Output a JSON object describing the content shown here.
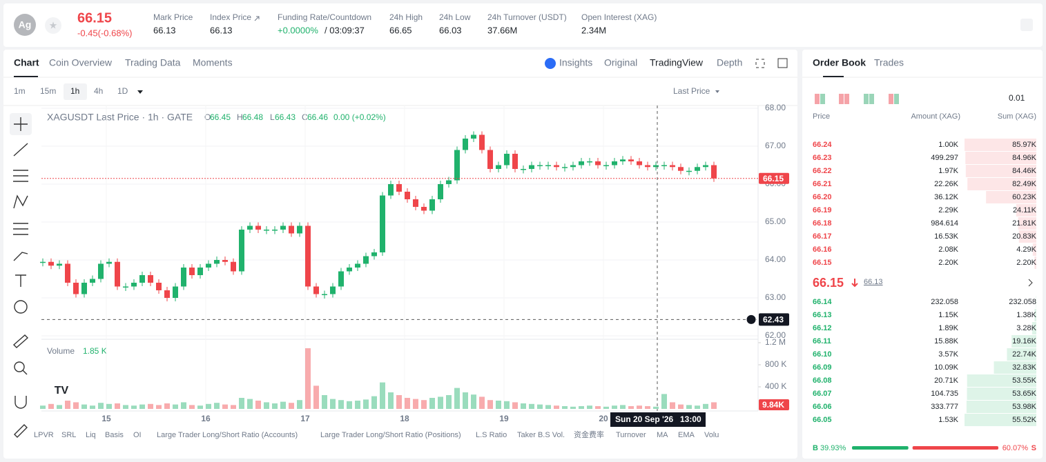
{
  "header": {
    "symbol_icon": "Ag",
    "last_price": "66.15",
    "change": "-0.45(-0.68%)",
    "stats": [
      {
        "label": "Mark Price",
        "value": "66.13"
      },
      {
        "label": "Index Price",
        "value": "66.13"
      },
      {
        "label": "Funding Rate/Countdown",
        "value": "+0.0000%",
        "countdown": "/ 03:09:37"
      },
      {
        "label": "24h High",
        "value": "66.65"
      },
      {
        "label": "24h Low",
        "value": "66.03"
      },
      {
        "label": "24h Turnover (USDT)",
        "value": "37.66M"
      },
      {
        "label": "Open Interest (XAG)",
        "value": "2.34M"
      }
    ]
  },
  "tabs": {
    "left": [
      "Chart",
      "Coin Overview",
      "Trading Data",
      "Moments"
    ],
    "right": [
      "Insights",
      "Original",
      "TradingView",
      "Depth"
    ]
  },
  "intervals": [
    "1m",
    "15m",
    "1h",
    "4h",
    "1D"
  ],
  "price_source": "Last Price",
  "legend": {
    "title": "XAGUSDT Last Price · 1h · GATE",
    "ohlc": [
      {
        "key": "O",
        "value": "66.45"
      },
      {
        "key": "H",
        "value": "66.48"
      },
      {
        "key": "L",
        "value": "66.43"
      },
      {
        "key": "C",
        "value": "66.46"
      }
    ],
    "change": "0.00 (+0.02%)",
    "volume_label": "Volume",
    "volume_value": "1.85 K"
  },
  "chart_data": {
    "type": "candlestick",
    "closes": [
      63.95,
      63.85,
      63.9,
      63.4,
      63.1,
      63.4,
      63.5,
      63.9,
      63.95,
      63.3,
      63.3,
      63.4,
      63.6,
      63.4,
      63.2,
      63.0,
      63.3,
      63.8,
      63.6,
      63.8,
      63.9,
      64.0,
      63.95,
      63.7,
      64.8,
      64.9,
      64.8,
      64.8,
      64.8,
      64.9,
      64.7,
      64.9,
      63.3,
      63.1,
      63.1,
      63.3,
      63.7,
      63.8,
      63.9,
      64.1,
      64.2,
      65.7,
      66.0,
      65.8,
      65.6,
      65.4,
      65.3,
      65.6,
      66.0,
      66.1,
      66.9,
      67.2,
      67.3,
      66.9,
      66.4,
      66.5,
      66.8,
      66.4,
      66.4,
      66.5,
      66.5,
      66.5,
      66.45,
      66.45,
      66.5,
      66.6,
      66.6,
      66.5,
      66.5,
      66.6,
      66.65,
      66.6,
      66.5,
      66.45,
      66.5,
      66.5,
      66.45,
      66.35,
      66.35,
      66.45,
      66.5,
      66.15
    ],
    "volumes": [
      60,
      90,
      70,
      150,
      120,
      80,
      60,
      110,
      90,
      100,
      70,
      60,
      80,
      90,
      70,
      100,
      80,
      120,
      70,
      60,
      90,
      110,
      80,
      70,
      200,
      180,
      150,
      120,
      100,
      130,
      110,
      160,
      1100,
      420,
      250,
      180,
      160,
      140,
      150,
      170,
      230,
      480,
      300,
      250,
      200,
      180,
      160,
      200,
      220,
      250,
      380,
      300,
      260,
      220,
      160,
      150,
      140,
      120,
      100,
      90,
      80,
      70,
      60,
      50,
      40,
      50,
      60,
      50,
      40,
      60,
      70,
      50,
      60,
      50,
      40,
      270,
      120,
      80,
      70,
      60,
      90,
      120
    ],
    "ylim": [
      62,
      68
    ],
    "yticks": [
      {
        "value": 62,
        "label": "62.00"
      },
      {
        "value": 63,
        "label": "63.00"
      },
      {
        "value": 64,
        "label": "64.00"
      },
      {
        "value": 65,
        "label": "65.00"
      },
      {
        "value": 66,
        "label": "66.00"
      },
      {
        "value": 67,
        "label": "67.00"
      },
      {
        "value": 68,
        "label": "68.00"
      }
    ],
    "volume_ylim": [
      0,
      1200
    ],
    "volume_ticks": [
      {
        "value": 400,
        "label": "400 K"
      },
      {
        "value": 800,
        "label": "800 K"
      },
      {
        "value": 1200,
        "label": "1.2 M"
      }
    ],
    "x_labels": [
      "15",
      "16",
      "17",
      "18",
      "19",
      "20"
    ],
    "last_price": {
      "value": 66.15,
      "label": "66.15"
    },
    "crosshair": {
      "value": 62.43,
      "label": "62.43",
      "date": "Sun 20 Sep '26",
      "time": "13:00"
    },
    "last_volume": "9.84K",
    "up_color": "#20b26c",
    "down_color": "#ef454a"
  },
  "indicators": [
    "LPVR",
    "SRL",
    "Liq",
    "Basis",
    "OI",
    "Large Trader Long/Short Ratio (Accounts)",
    "Large Trader Long/Short Ratio (Positions)",
    "L.S Ratio",
    "Taker B.S Vol.",
    "资金费率",
    "Turnover",
    "MA",
    "EMA",
    "Volu"
  ],
  "order_book": {
    "tabs": [
      "Order Book",
      "Trades"
    ],
    "precision": "0.01",
    "columns": [
      "Price",
      "Amount (XAG)",
      "Sum (XAG)"
    ],
    "asks": [
      {
        "price": "66.24",
        "amount": "1.00K",
        "sum": {
          "value": 85970,
          "label": "85.97K"
        }
      },
      {
        "price": "66.23",
        "amount": "499.297",
        "sum": {
          "value": 84960,
          "label": "84.96K"
        }
      },
      {
        "price": "66.22",
        "amount": "1.97K",
        "sum": {
          "value": 84460,
          "label": "84.46K"
        }
      },
      {
        "price": "66.21",
        "amount": "22.26K",
        "sum": {
          "value": 82490,
          "label": "82.49K"
        }
      },
      {
        "price": "66.20",
        "amount": "36.12K",
        "sum": {
          "value": 60230,
          "label": "60.23K"
        }
      },
      {
        "price": "66.19",
        "amount": "2.29K",
        "sum": {
          "value": 24110,
          "label": "24.11K"
        }
      },
      {
        "price": "66.18",
        "amount": "984.614",
        "sum": {
          "value": 21810,
          "label": "21.81K"
        }
      },
      {
        "price": "66.17",
        "amount": "16.53K",
        "sum": {
          "value": 20830,
          "label": "20.83K"
        }
      },
      {
        "price": "66.16",
        "amount": "2.08K",
        "sum": {
          "value": 4290,
          "label": "4.29K"
        }
      },
      {
        "price": "66.15",
        "amount": "2.20K",
        "sum": {
          "value": 2200,
          "label": "2.20K"
        }
      }
    ],
    "mid_price": "66.15",
    "mark_price": "66.13",
    "bids": [
      {
        "price": "66.14",
        "amount": "232.058",
        "sum": {
          "value": 232.058,
          "label": "232.058"
        }
      },
      {
        "price": "66.13",
        "amount": "1.15K",
        "sum": {
          "value": 1380,
          "label": "1.38K"
        }
      },
      {
        "price": "66.12",
        "amount": "1.89K",
        "sum": {
          "value": 3280,
          "label": "3.28K"
        }
      },
      {
        "price": "66.11",
        "amount": "15.88K",
        "sum": {
          "value": 19160,
          "label": "19.16K"
        }
      },
      {
        "price": "66.10",
        "amount": "3.57K",
        "sum": {
          "value": 22740,
          "label": "22.74K"
        }
      },
      {
        "price": "66.09",
        "amount": "10.09K",
        "sum": {
          "value": 32830,
          "label": "32.83K"
        }
      },
      {
        "price": "66.08",
        "amount": "20.71K",
        "sum": {
          "value": 53550,
          "label": "53.55K"
        }
      },
      {
        "price": "66.07",
        "amount": "104.735",
        "sum": {
          "value": 53650,
          "label": "53.65K"
        }
      },
      {
        "price": "66.06",
        "amount": "333.777",
        "sum": {
          "value": 53980,
          "label": "53.98K"
        }
      },
      {
        "price": "66.05",
        "amount": "1.53K",
        "sum": {
          "value": 55520,
          "label": "55.52K"
        }
      }
    ],
    "buy": {
      "letter": "B",
      "value": 39.93,
      "label": "39.93%"
    },
    "sell": {
      "letter": "S",
      "value": 60.07,
      "label": "60.07%"
    }
  }
}
